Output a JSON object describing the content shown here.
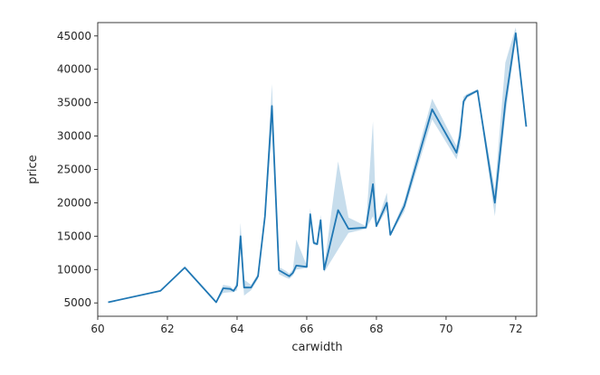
{
  "chart_data": {
    "type": "line",
    "title": "",
    "xlabel": "carwidth",
    "ylabel": "price",
    "xlim": [
      60.0,
      72.6
    ],
    "ylim": [
      3000,
      47000
    ],
    "xticks": [
      60,
      62,
      64,
      66,
      68,
      70,
      72
    ],
    "yticks": [
      5000,
      10000,
      15000,
      20000,
      25000,
      30000,
      35000,
      40000,
      45000
    ],
    "grid": false,
    "legend": "none",
    "line_color": "#1f77b4",
    "band_color": "#1f77b4",
    "series": [
      {
        "x": [
          60.3,
          61.8,
          62.5,
          63.4,
          63.6,
          63.8,
          63.9,
          64.0,
          64.1,
          64.2,
          64.4,
          64.6,
          64.8,
          65.0,
          65.2,
          65.4,
          65.5,
          65.6,
          65.7,
          66.0,
          66.1,
          66.2,
          66.3,
          66.4,
          66.5,
          66.9,
          67.2,
          67.7,
          67.9,
          68.0,
          68.3,
          68.4,
          68.8,
          69.6,
          70.3,
          70.4,
          70.5,
          70.6,
          70.9,
          71.4,
          71.7,
          72.0,
          72.3
        ],
        "y": [
          5100,
          6800,
          10300,
          5100,
          7200,
          7100,
          6800,
          7600,
          15000,
          7300,
          7300,
          9000,
          18000,
          34500,
          9900,
          9300,
          9000,
          9500,
          10600,
          10400,
          18300,
          14000,
          13800,
          17400,
          10000,
          18900,
          16100,
          16300,
          22800,
          16500,
          20000,
          15200,
          19500,
          34000,
          27500,
          30000,
          35200,
          36000,
          36800,
          20000,
          35000,
          45400,
          31400
        ],
        "band_low": [
          5100,
          6800,
          10300,
          5100,
          6500,
          6600,
          6600,
          6900,
          13500,
          6100,
          6900,
          8600,
          17200,
          31000,
          9300,
          8800,
          8600,
          9100,
          10000,
          10200,
          17300,
          13700,
          13600,
          16600,
          9600,
          13000,
          15500,
          16100,
          18000,
          16300,
          19000,
          15000,
          18700,
          32500,
          26500,
          28500,
          34500,
          35700,
          36600,
          18000,
          33000,
          44500,
          31400
        ],
        "band_high": [
          5100,
          6800,
          10300,
          5100,
          7700,
          7500,
          7000,
          8300,
          17000,
          8500,
          7700,
          9400,
          18800,
          37800,
          10400,
          9800,
          9400,
          10000,
          14500,
          10600,
          19200,
          14300,
          14000,
          18200,
          10400,
          26200,
          17800,
          16500,
          32200,
          16700,
          21500,
          15400,
          20300,
          35600,
          28500,
          31500,
          35900,
          36300,
          37000,
          22000,
          41000,
          46300,
          31400
        ]
      }
    ]
  }
}
